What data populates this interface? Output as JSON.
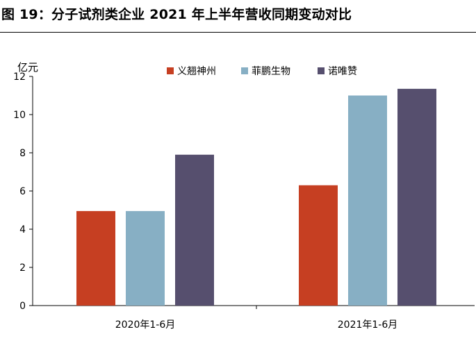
{
  "figure": {
    "title": "图 19：分子试剂类企业 2021 年上半年营收同期变动对比"
  },
  "chart_data": {
    "type": "bar",
    "categories": [
      "2020年1-6月",
      "2021年1-6月"
    ],
    "series": [
      {
        "name": "义翘神州",
        "values": [
          4.95,
          6.3
        ],
        "color": "#c63f22"
      },
      {
        "name": "菲鹏生物",
        "values": [
          4.95,
          11.0
        ],
        "color": "#87afc4"
      },
      {
        "name": "诺唯赞",
        "values": [
          7.9,
          11.35
        ],
        "color": "#564f6e"
      }
    ],
    "ylabel": "亿元",
    "ylim": [
      0,
      12
    ],
    "yticks": [
      0,
      2,
      4,
      6,
      8,
      10,
      12
    ],
    "legend": "top",
    "grid": false
  }
}
